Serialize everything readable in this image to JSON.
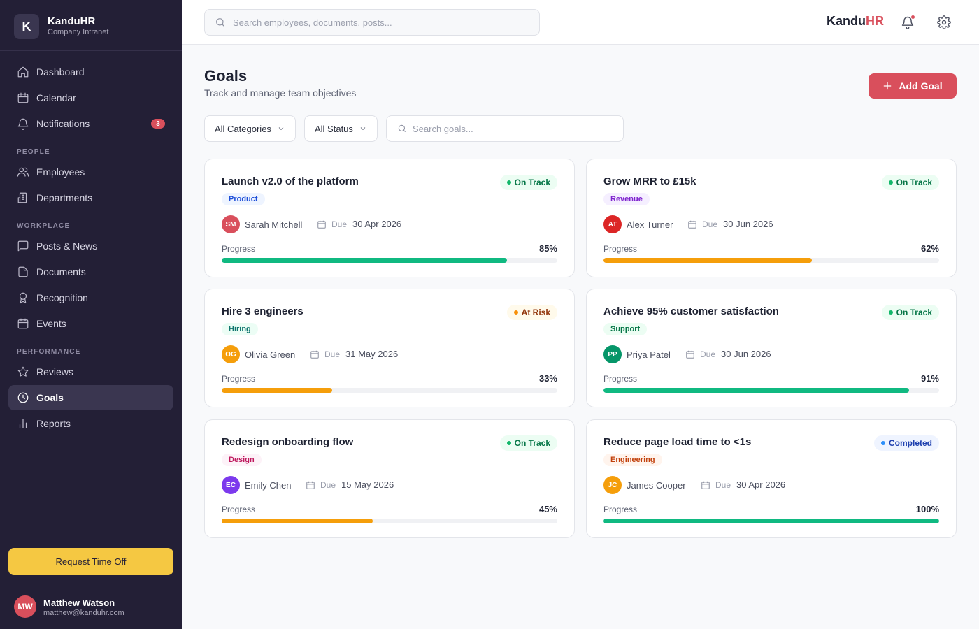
{
  "brand": {
    "logo_letter": "K",
    "name": "KanduHR",
    "subtitle": "Company Intranet"
  },
  "sidebar": {
    "items": [
      {
        "key": "dashboard",
        "label": "Dashboard",
        "icon": "home-icon"
      },
      {
        "key": "calendar",
        "label": "Calendar",
        "icon": "calendar-icon"
      },
      {
        "key": "notifications",
        "label": "Notifications",
        "icon": "bell-icon",
        "badge": "3"
      },
      {
        "key": "employees",
        "label": "Employees",
        "icon": "users-icon"
      },
      {
        "key": "departments",
        "label": "Departments",
        "icon": "building-icon"
      },
      {
        "key": "posts",
        "label": "Posts & News",
        "icon": "message-icon"
      },
      {
        "key": "documents",
        "label": "Documents",
        "icon": "file-icon"
      },
      {
        "key": "recognition",
        "label": "Recognition",
        "icon": "award-icon"
      },
      {
        "key": "events",
        "label": "Events",
        "icon": "calendar-icon"
      },
      {
        "key": "reviews",
        "label": "Reviews",
        "icon": "star-icon"
      },
      {
        "key": "goals",
        "label": "Goals",
        "icon": "target-icon",
        "active": true
      },
      {
        "key": "reports",
        "label": "Reports",
        "icon": "bar-chart-icon"
      }
    ],
    "sections": {
      "people": "PEOPLE",
      "workplace": "WORKPLACE",
      "performance": "PERFORMANCE"
    },
    "request_button": "Request Time Off",
    "user": {
      "initials": "MW",
      "name": "Matthew Watson",
      "email": "matthew@kanduhr.com"
    }
  },
  "header": {
    "search_placeholder": "Search employees, documents, posts...",
    "brand_main": "Kandu",
    "brand_accent": "HR",
    "icons": [
      "bell-icon",
      "gear-icon"
    ]
  },
  "page": {
    "title": "Goals",
    "subtitle": "Track and manage team objectives",
    "add_button": "Add Goal",
    "filters": {
      "category": "All Categories",
      "status": "All Status",
      "search_placeholder": "Search goals..."
    }
  },
  "colors": {
    "accent": "#d94f5c",
    "sidebar_bg": "#231f36",
    "progress_green": "#10b981",
    "progress_amber": "#f59e0b",
    "request_yellow": "#f5c842"
  },
  "goals": [
    {
      "title": "Launch v2.0 of the platform",
      "status": "On Track",
      "category": "Product",
      "owner_initials": "SM",
      "owner": "Sarah Mitchell",
      "owner_color": "#d94f5c",
      "due_label": "Due",
      "due": "30 Apr 2026",
      "progress_label": "Progress",
      "progress": 85,
      "progress_text": "85%",
      "bar_color": "#10b981",
      "status_fg": "#067647",
      "status_bg": "#ecfdf3",
      "status_dot": "#12b76a",
      "cat_fg": "#1d4ed8",
      "cat_bg": "#eef4ff"
    },
    {
      "title": "Grow MRR to £15k",
      "status": "On Track",
      "category": "Revenue",
      "owner_initials": "AT",
      "owner": "Alex Turner",
      "owner_color": "#dc2626",
      "due_label": "Due",
      "due": "30 Jun 2026",
      "progress_label": "Progress",
      "progress": 62,
      "progress_text": "62%",
      "bar_color": "#f59e0b",
      "status_fg": "#067647",
      "status_bg": "#ecfdf3",
      "status_dot": "#12b76a",
      "cat_fg": "#7e22ce",
      "cat_bg": "#f5efff"
    },
    {
      "title": "Hire 3 engineers",
      "status": "At Risk",
      "category": "Hiring",
      "owner_initials": "OG",
      "owner": "Olivia Green",
      "owner_color": "#f59e0b",
      "due_label": "Due",
      "due": "31 May 2026",
      "progress_label": "Progress",
      "progress": 33,
      "progress_text": "33%",
      "bar_color": "#f59e0b",
      "status_fg": "#93370d",
      "status_bg": "#fffaeb",
      "status_dot": "#f79009",
      "cat_fg": "#0f766e",
      "cat_bg": "#ecfdf5"
    },
    {
      "title": "Achieve 95% customer satisfaction",
      "status": "On Track",
      "category": "Support",
      "owner_initials": "PP",
      "owner": "Priya Patel",
      "owner_color": "#059669",
      "due_label": "Due",
      "due": "30 Jun 2026",
      "progress_label": "Progress",
      "progress": 91,
      "progress_text": "91%",
      "bar_color": "#10b981",
      "status_fg": "#067647",
      "status_bg": "#ecfdf3",
      "status_dot": "#12b76a",
      "cat_fg": "#067647",
      "cat_bg": "#ecfdf3"
    },
    {
      "title": "Redesign onboarding flow",
      "status": "On Track",
      "category": "Design",
      "owner_initials": "EC",
      "owner": "Emily Chen",
      "owner_color": "#7c3aed",
      "due_label": "Due",
      "due": "15 May 2026",
      "progress_label": "Progress",
      "progress": 45,
      "progress_text": "45%",
      "bar_color": "#f59e0b",
      "status_fg": "#067647",
      "status_bg": "#ecfdf3",
      "status_dot": "#12b76a",
      "cat_fg": "#be185d",
      "cat_bg": "#fdf2f8"
    },
    {
      "title": "Reduce page load time to <1s",
      "status": "Completed",
      "category": "Engineering",
      "owner_initials": "JC",
      "owner": "James Cooper",
      "owner_color": "#f59e0b",
      "due_label": "Due",
      "due": "30 Apr 2026",
      "progress_label": "Progress",
      "progress": 100,
      "progress_text": "100%",
      "bar_color": "#10b981",
      "status_fg": "#1e40af",
      "status_bg": "#eff4ff",
      "status_dot": "#2e90fa",
      "cat_fg": "#c2410c",
      "cat_bg": "#fff4ed"
    }
  ]
}
